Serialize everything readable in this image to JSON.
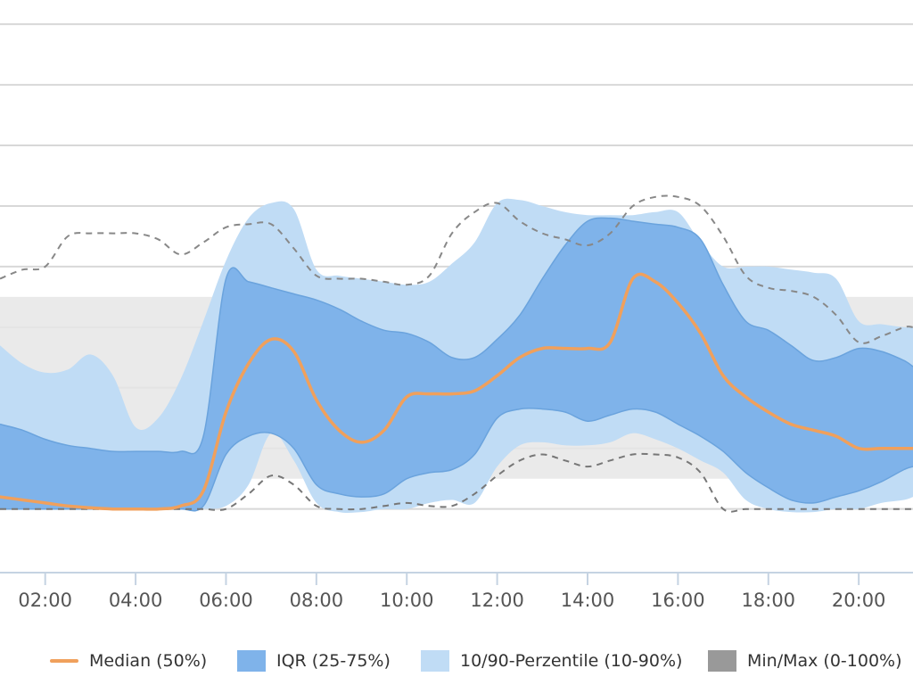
{
  "chart_data": {
    "type": "area",
    "title": "",
    "xlabel": "",
    "ylabel": "",
    "x_unit": "hours",
    "x_visible_range": [
      1.0,
      21.2
    ],
    "y_visible_range": [
      -1.05,
      8.4
    ],
    "ylim": [
      -1,
      8.4
    ],
    "y_gridlines": [
      0,
      1,
      2,
      3,
      4,
      5,
      6,
      7,
      8
    ],
    "grid": true,
    "legend_position": "bottom",
    "x_ticks": [
      {
        "value": 2,
        "label": "02:00"
      },
      {
        "value": 4,
        "label": "04:00"
      },
      {
        "value": 6,
        "label": "06:00"
      },
      {
        "value": 8,
        "label": "08:00"
      },
      {
        "value": 10,
        "label": "10:00"
      },
      {
        "value": 12,
        "label": "12:00"
      },
      {
        "value": 14,
        "label": "14:00"
      },
      {
        "value": 16,
        "label": "16:00"
      },
      {
        "value": 18,
        "label": "18:00"
      },
      {
        "value": 20,
        "label": "20:00"
      }
    ],
    "reference_band": {
      "from": 0.5,
      "to": 3.5
    },
    "x": [
      1,
      1.5,
      2,
      2.5,
      3,
      3.5,
      4,
      4.5,
      5,
      5.5,
      6,
      6.5,
      7,
      7.5,
      8,
      8.5,
      9,
      9.5,
      10,
      10.5,
      11,
      11.5,
      12,
      12.5,
      13,
      13.5,
      14,
      14.5,
      15,
      15.5,
      16,
      16.5,
      17,
      17.5,
      18,
      18.5,
      19,
      19.5,
      20,
      20.5,
      21,
      21.2
    ],
    "series": [
      {
        "name": "Median (50%)",
        "kind": "line",
        "color": "#f0a05c",
        "values": [
          0.2,
          0.15,
          0.1,
          0.05,
          0.02,
          0.0,
          0.0,
          0.0,
          0.05,
          0.3,
          1.6,
          2.4,
          2.8,
          2.6,
          1.8,
          1.3,
          1.1,
          1.3,
          1.85,
          1.9,
          1.9,
          1.95,
          2.2,
          2.5,
          2.65,
          2.65,
          2.65,
          2.75,
          3.8,
          3.75,
          3.4,
          2.9,
          2.2,
          1.85,
          1.6,
          1.4,
          1.3,
          1.2,
          1.0,
          1.0,
          1.0,
          1.0
        ]
      },
      {
        "name": "IQR (25-75%)",
        "kind": "band",
        "color": "#7fb3ea",
        "lower": [
          0.0,
          0.0,
          0.0,
          0.0,
          0.0,
          0.0,
          0.0,
          0.0,
          0.0,
          0.05,
          0.9,
          1.2,
          1.25,
          1.0,
          0.4,
          0.25,
          0.2,
          0.25,
          0.5,
          0.6,
          0.65,
          0.9,
          1.5,
          1.65,
          1.65,
          1.6,
          1.45,
          1.55,
          1.65,
          1.6,
          1.4,
          1.2,
          0.95,
          0.6,
          0.35,
          0.15,
          0.1,
          0.2,
          0.3,
          0.45,
          0.65,
          0.7
        ],
        "upper": [
          1.4,
          1.3,
          1.15,
          1.05,
          1.0,
          0.95,
          0.95,
          0.95,
          0.95,
          1.2,
          3.8,
          3.75,
          3.65,
          3.55,
          3.45,
          3.3,
          3.1,
          2.95,
          2.9,
          2.75,
          2.5,
          2.5,
          2.8,
          3.2,
          3.8,
          4.35,
          4.75,
          4.8,
          4.75,
          4.7,
          4.65,
          4.45,
          3.7,
          3.1,
          2.95,
          2.7,
          2.45,
          2.5,
          2.65,
          2.6,
          2.45,
          2.35
        ]
      },
      {
        "name": "10/90-Perzentile (10-90%)",
        "kind": "band",
        "color": "#c0dcf5",
        "lower": [
          0.0,
          0.0,
          0.0,
          0.0,
          0.0,
          0.0,
          0.0,
          0.0,
          0.0,
          0.0,
          0.05,
          0.4,
          1.25,
          0.8,
          0.1,
          -0.05,
          -0.05,
          0.0,
          0.0,
          0.1,
          0.15,
          0.1,
          0.7,
          1.05,
          1.1,
          1.05,
          1.05,
          1.1,
          1.25,
          1.15,
          1.0,
          0.8,
          0.6,
          0.15,
          0.0,
          -0.05,
          -0.05,
          0.0,
          0.0,
          0.1,
          0.15,
          0.2
        ],
        "upper": [
          2.7,
          2.4,
          2.25,
          2.3,
          2.55,
          2.2,
          1.35,
          1.5,
          2.15,
          3.1,
          4.1,
          4.8,
          5.05,
          4.95,
          3.95,
          3.85,
          3.8,
          3.75,
          3.7,
          3.75,
          4.05,
          4.4,
          5.05,
          5.1,
          5.0,
          4.9,
          4.85,
          4.85,
          4.85,
          4.9,
          4.9,
          4.4,
          4.0,
          4.0,
          4.0,
          3.95,
          3.9,
          3.8,
          3.1,
          3.05,
          3.0,
          3.0
        ]
      },
      {
        "name": "Min/Max (0-100%)",
        "kind": "dashed",
        "color": "#999999",
        "lower": [
          0.0,
          0.0,
          0.0,
          0.0,
          0.0,
          0.0,
          0.0,
          0.0,
          0.0,
          0.0,
          0.0,
          0.25,
          0.55,
          0.4,
          0.05,
          0.0,
          0.0,
          0.05,
          0.1,
          0.05,
          0.05,
          0.25,
          0.55,
          0.8,
          0.9,
          0.8,
          0.7,
          0.8,
          0.9,
          0.9,
          0.85,
          0.6,
          0.0,
          0.0,
          0.0,
          0.0,
          0.0,
          0.0,
          0.0,
          0.0,
          0.0,
          0.0
        ],
        "upper": [
          3.8,
          3.95,
          4.0,
          4.5,
          4.55,
          4.55,
          4.55,
          4.45,
          4.2,
          4.4,
          4.65,
          4.7,
          4.7,
          4.3,
          3.85,
          3.8,
          3.8,
          3.75,
          3.7,
          3.85,
          4.55,
          4.9,
          5.05,
          4.75,
          4.55,
          4.45,
          4.35,
          4.55,
          5.0,
          5.15,
          5.15,
          5.0,
          4.5,
          3.85,
          3.65,
          3.6,
          3.5,
          3.2,
          2.75,
          2.85,
          3.0,
          3.0
        ]
      }
    ]
  }
}
